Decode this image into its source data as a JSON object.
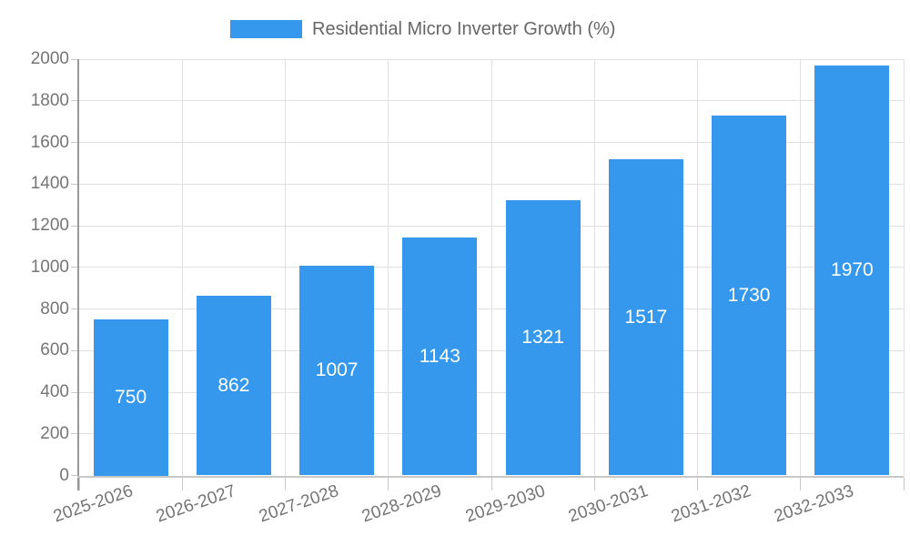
{
  "chart_data": {
    "type": "bar",
    "title": "Residential Micro Inverter Growth (%)",
    "categories": [
      "2025-2026",
      "2026-2027",
      "2027-2028",
      "2028-2029",
      "2029-2030",
      "2030-2031",
      "2031-2032",
      "2032-2033"
    ],
    "values": [
      750,
      862,
      1007,
      1143,
      1321,
      1517,
      1730,
      1970
    ],
    "value_labels": [
      "750",
      "862",
      "1007",
      "1143",
      "1321",
      "1517",
      "1730",
      "1970"
    ],
    "xlabel": "",
    "ylabel": "",
    "ylim": [
      0,
      2000
    ],
    "ytick_step": 200,
    "ytick_labels": [
      "0",
      "200",
      "400",
      "600",
      "800",
      "1000",
      "1200",
      "1400",
      "1600",
      "1800",
      "2000"
    ],
    "grid": true,
    "legend_position": "top-center",
    "value_label_position": "inside-center",
    "colors": {
      "bar": "#3598EC",
      "value_label": "#FFFFFF",
      "axis_text": "#757575",
      "legend_text": "#666666",
      "grid_line": "#E0E0E0",
      "tick_line": "#C8C8C8",
      "axis_line_y": "#999999",
      "axis_line_x": "#C8C8C8"
    }
  }
}
